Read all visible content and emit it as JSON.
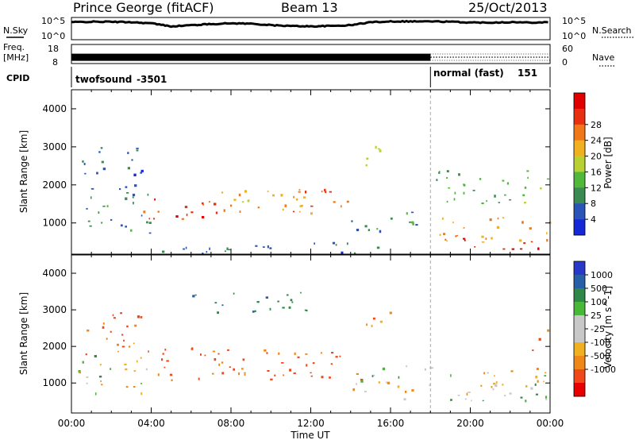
{
  "header": {
    "station": "Prince George (fitACF)",
    "beam": "Beam 13",
    "date": "25/Oct/2013"
  },
  "noise_panel": {
    "left_label": "N.Sky",
    "right_label": "N.Search",
    "left_ticks": [
      "10^5",
      "10^0"
    ],
    "right_ticks": [
      "10^5",
      "10^0"
    ],
    "series": [
      {
        "name": "N.Sky",
        "x": [
          0,
          1,
          2,
          3,
          4,
          5,
          6,
          7,
          8,
          9,
          10,
          11,
          12,
          13,
          14,
          15,
          16,
          17,
          18,
          19,
          20,
          21,
          22,
          23,
          24
        ],
        "y": [
          4.4,
          4.5,
          4.5,
          4.4,
          4.1,
          3.3,
          3.6,
          3.9,
          4.1,
          4.0,
          3.6,
          3.4,
          3.3,
          3.4,
          3.6,
          4.4,
          4.6,
          4.6,
          4.6,
          4.5,
          4.3,
          4.3,
          4.4,
          4.3,
          4.4
        ]
      }
    ]
  },
  "freq_panel": {
    "left_label_line1": "Freq.",
    "left_label_line2": "[MHz]",
    "left_ticks": [
      "18",
      "8"
    ],
    "right_label": "Nave",
    "right_ticks": [
      "60",
      "0"
    ],
    "freq_value": 11.5,
    "nave_value": 20
  },
  "cpid_panel": {
    "label": "CPID",
    "programs": [
      {
        "name": "twofsound",
        "id": "-3501",
        "start_h": 0,
        "end_h": 18
      },
      {
        "name": "normal (fast)",
        "id": "151",
        "start_h": 18,
        "end_h": 24
      }
    ]
  },
  "x_axis": {
    "label": "Time UT",
    "ticks": [
      "00:00",
      "04:00",
      "08:00",
      "12:00",
      "16:00",
      "20:00",
      "00:00"
    ]
  },
  "chart_data": [
    {
      "type": "heatmap",
      "title": "Power",
      "ylabel": "Slant Range [km]",
      "xlabel": "Time UT",
      "ylim": [
        180,
        4500
      ],
      "xlim": [
        0,
        24
      ],
      "yticks": [
        1000,
        2000,
        3000,
        4000
      ],
      "colorbar": {
        "label": "Power [dB]",
        "tick_labels": [
          "4",
          "8",
          "12",
          "16",
          "20",
          "24",
          "28"
        ],
        "colors": [
          "#1428d8",
          "#2a54b8",
          "#3a8a52",
          "#52b83c",
          "#b8d030",
          "#f0b020",
          "#f07818",
          "#e83010",
          "#e00000"
        ]
      },
      "scatter_regions": [
        {
          "t0": 0.5,
          "t1": 4.0,
          "r0": 700,
          "r1": 2000,
          "value": 8
        },
        {
          "t0": 0.5,
          "t1": 3.5,
          "r0": 2000,
          "r1": 3000,
          "value": 6
        },
        {
          "t0": 3.5,
          "t1": 7.5,
          "r0": 1000,
          "r1": 1700,
          "value": 26
        },
        {
          "t0": 7.5,
          "t1": 12.5,
          "r0": 1200,
          "r1": 2000,
          "value": 20
        },
        {
          "t0": 11.0,
          "t1": 14.5,
          "r0": 1300,
          "r1": 1900,
          "value": 25
        },
        {
          "t0": 14.5,
          "t1": 16.0,
          "r0": 2500,
          "r1": 3100,
          "value": 18
        },
        {
          "t0": 14.0,
          "t1": 18.0,
          "r0": 800,
          "r1": 1400,
          "value": 9
        },
        {
          "t0": 18.0,
          "t1": 24.0,
          "r0": 500,
          "r1": 1200,
          "value": 22
        },
        {
          "t0": 19.5,
          "t1": 23.5,
          "r0": 300,
          "r1": 700,
          "value": 28
        },
        {
          "t0": 18.0,
          "t1": 24.0,
          "r0": 1500,
          "r1": 2400,
          "value": 12
        },
        {
          "t0": 4.0,
          "t1": 16.0,
          "r0": 200,
          "r1": 500,
          "value": 6
        }
      ]
    },
    {
      "type": "heatmap",
      "title": "Velocity",
      "ylabel": "Slant Range [km]",
      "xlabel": "Time UT",
      "ylim": [
        180,
        4500
      ],
      "xlim": [
        0,
        24
      ],
      "yticks": [
        1000,
        2000,
        3000,
        4000
      ],
      "colorbar": {
        "label": "Velocity [m s^-1]",
        "tick_labels": [
          "1000",
          "500",
          "100",
          "25",
          "-25",
          "-100",
          "-500",
          "-1000"
        ],
        "colors": [
          "#2838c8",
          "#2860a8",
          "#308848",
          "#48b838",
          "#c8c8c8",
          "#c8c8c8",
          "#f0b020",
          "#f08818",
          "#f04818",
          "#e80000"
        ]
      },
      "scatter_regions": [
        {
          "t0": 0.3,
          "t1": 4.0,
          "r0": 700,
          "r1": 1800,
          "value": 0
        },
        {
          "t0": 0.5,
          "t1": 3.5,
          "r0": 1800,
          "r1": 3000,
          "value": -300
        },
        {
          "t0": 3.8,
          "t1": 14.5,
          "r0": 1100,
          "r1": 2000,
          "value": -350
        },
        {
          "t0": 14.5,
          "t1": 16.0,
          "r0": 2500,
          "r1": 3100,
          "value": -200
        },
        {
          "t0": 14.0,
          "t1": 24.0,
          "r0": 500,
          "r1": 1500,
          "value": 0
        },
        {
          "t0": 6.0,
          "t1": 12.0,
          "r0": 2900,
          "r1": 3500,
          "value": 250
        },
        {
          "t0": 23.0,
          "t1": 24.0,
          "r0": 1900,
          "r1": 2500,
          "value": -250
        }
      ]
    }
  ]
}
